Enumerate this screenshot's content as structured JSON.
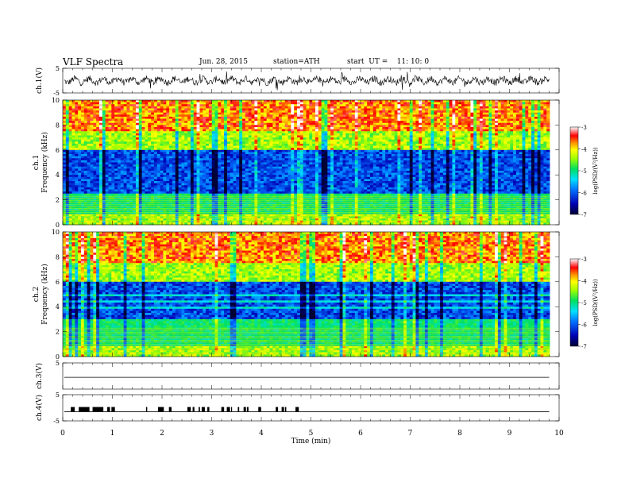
{
  "header": {
    "title": "VLF Spectra",
    "date": "Jun. 28, 2015",
    "station": "station=ATH",
    "start": "start  UT =    11: 10: 0"
  },
  "chart_data": [
    {
      "type": "line",
      "ylabel": "ch.1(V)",
      "ylim": [
        -5,
        5
      ],
      "ticks": [
        "5",
        "-5"
      ],
      "note": "dense noisy waveform near 0 V across 0-9.8 min"
    },
    {
      "type": "heatmap",
      "ylabel": "ch.1",
      "ylabel2": "Frequency (kHz)",
      "ylim": [
        0,
        10
      ],
      "ticks": [
        "0",
        "2",
        "4",
        "6",
        "8",
        "10"
      ],
      "colorbar": {
        "label": "log(PSD/(V²/Hz))",
        "ticks": [
          "-3",
          "-4",
          "-5",
          "-6",
          "-7"
        ],
        "range": [
          -7,
          -3
        ]
      }
    },
    {
      "type": "heatmap",
      "ylabel": "ch.2",
      "ylabel2": "Frequency (kHz)",
      "ylim": [
        0,
        10
      ],
      "ticks": [
        "0",
        "2",
        "4",
        "6",
        "8",
        "10"
      ],
      "colorbar": {
        "label": "log(PSD/(V²/Hz))",
        "ticks": [
          "-3",
          "-4",
          "-5",
          "-6",
          "-7"
        ],
        "range": [
          -7,
          -3
        ]
      }
    },
    {
      "type": "line",
      "ylabel": "ch.3(V)",
      "ylim": [
        -5,
        5
      ],
      "ticks": [
        "5"
      ],
      "note": "flat line near 0 V"
    },
    {
      "type": "line",
      "ylabel": "ch.4(V)",
      "ylim": [
        -5,
        5
      ],
      "ticks": [
        "5",
        "-5"
      ],
      "note": "flat line with pulses between 0 and 4.8 min"
    }
  ],
  "xaxis": {
    "label": "Time (min)",
    "xlim": [
      0,
      10
    ],
    "ticks": [
      "0",
      "1",
      "2",
      "3",
      "4",
      "5",
      "6",
      "7",
      "8",
      "9",
      "10"
    ],
    "data_end": 9.8
  }
}
